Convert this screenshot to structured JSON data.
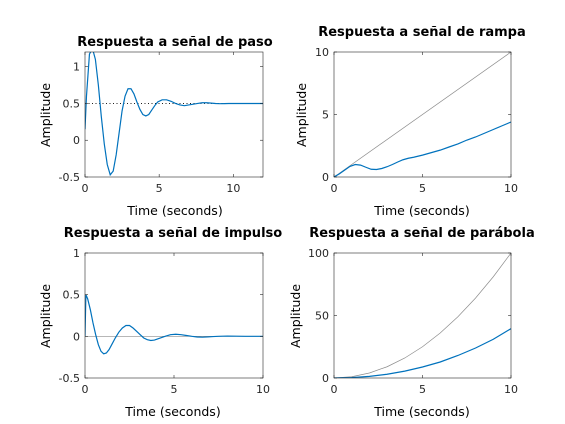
{
  "chart_data": [
    {
      "type": "line",
      "title": "Respuesta a señal de paso",
      "xlabel": "Time (seconds)",
      "ylabel": "Amplitude",
      "xlim": [
        0,
        12
      ],
      "ylim": [
        -0.5,
        1.2
      ],
      "xticks": [
        0,
        5,
        10
      ],
      "yticks": [
        -0.5,
        0,
        0.5,
        1
      ],
      "xticklabels": [
        "0",
        "5",
        "10"
      ],
      "yticklabels": [
        "-0.5",
        "0",
        "0.5",
        "1"
      ],
      "reference": {
        "kind": "hline",
        "y": 0.5,
        "style": "dotted"
      },
      "series": [
        {
          "color": "#0072bd",
          "x": [
            0,
            0.1,
            0.3,
            0.5,
            0.7,
            0.9,
            1.1,
            1.3,
            1.5,
            1.7,
            1.9,
            2.1,
            2.3,
            2.5,
            2.7,
            2.9,
            3.1,
            3.3,
            3.5,
            3.7,
            3.9,
            4.1,
            4.3,
            4.5,
            4.7,
            4.9,
            5.2,
            5.5,
            5.8,
            6.1,
            6.4,
            6.7,
            7.0,
            7.3,
            7.6,
            7.9,
            8.2,
            8.5,
            8.8,
            9.1,
            9.4,
            9.7,
            10.0,
            10.5,
            11.0,
            11.5,
            12.0
          ],
          "y": [
            0.15,
            0.6,
            1.17,
            1.25,
            1.1,
            0.75,
            0.32,
            -0.05,
            -0.33,
            -0.47,
            -0.42,
            -0.2,
            0.1,
            0.4,
            0.6,
            0.7,
            0.7,
            0.63,
            0.52,
            0.42,
            0.35,
            0.33,
            0.35,
            0.41,
            0.47,
            0.52,
            0.55,
            0.55,
            0.53,
            0.5,
            0.48,
            0.47,
            0.48,
            0.49,
            0.5,
            0.51,
            0.51,
            0.505,
            0.5,
            0.497,
            0.498,
            0.5,
            0.5,
            0.5,
            0.5,
            0.5,
            0.5
          ]
        }
      ]
    },
    {
      "type": "line",
      "title": "Respuesta a señal de rampa",
      "xlabel": "Time (seconds)",
      "ylabel": "Amplitude",
      "xlim": [
        0,
        10
      ],
      "ylim": [
        0,
        10
      ],
      "xticks": [
        0,
        5,
        10
      ],
      "yticks": [
        0,
        5,
        10
      ],
      "xticklabels": [
        "0",
        "5",
        "10"
      ],
      "yticklabels": [
        "0",
        "5",
        "10"
      ],
      "reference": {
        "kind": "line",
        "x": [
          0,
          10
        ],
        "y": [
          0,
          10
        ]
      },
      "series": [
        {
          "color": "#0072bd",
          "x": [
            0,
            0.3,
            0.6,
            0.9,
            1.2,
            1.5,
            1.8,
            2.1,
            2.4,
            2.7,
            3.0,
            3.3,
            3.6,
            3.9,
            4.2,
            4.5,
            5,
            5.5,
            6,
            6.5,
            7,
            7.5,
            8,
            8.5,
            9,
            9.5,
            10
          ],
          "y": [
            0,
            0.25,
            0.55,
            0.85,
            1.0,
            0.95,
            0.78,
            0.62,
            0.6,
            0.68,
            0.82,
            1.0,
            1.2,
            1.38,
            1.5,
            1.58,
            1.75,
            1.95,
            2.15,
            2.4,
            2.65,
            2.95,
            3.2,
            3.5,
            3.8,
            4.1,
            4.4
          ]
        }
      ]
    },
    {
      "type": "line",
      "title": "Respuesta a señal de impulso",
      "xlabel": "Time (seconds)",
      "ylabel": "Amplitude",
      "xlim": [
        0,
        10
      ],
      "ylim": [
        -0.5,
        1
      ],
      "xticks": [
        0,
        5,
        10
      ],
      "yticks": [
        -0.5,
        0,
        0.5,
        1
      ],
      "xticklabels": [
        "0",
        "5",
        "10"
      ],
      "yticklabels": [
        "-0.5",
        "0",
        "0.5",
        "1"
      ],
      "reference": {
        "kind": "hline",
        "y": 0,
        "style": "solid"
      },
      "series": [
        {
          "color": "#0072bd",
          "x": [
            0,
            0.05,
            0.15,
            0.3,
            0.45,
            0.6,
            0.75,
            0.9,
            1.05,
            1.2,
            1.35,
            1.5,
            1.7,
            1.9,
            2.1,
            2.3,
            2.5,
            2.7,
            2.9,
            3.1,
            3.3,
            3.5,
            3.7,
            3.9,
            4.1,
            4.3,
            4.5,
            4.8,
            5.1,
            5.4,
            5.7,
            6.0,
            6.3,
            6.6,
            6.9,
            7.2,
            7.5,
            8.0,
            8.5,
            9.0,
            9.5,
            10.0
          ],
          "y": [
            0.0,
            0.5,
            0.45,
            0.32,
            0.16,
            0.02,
            -0.1,
            -0.18,
            -0.21,
            -0.2,
            -0.16,
            -0.1,
            -0.02,
            0.05,
            0.1,
            0.13,
            0.13,
            0.1,
            0.06,
            0.02,
            -0.02,
            -0.04,
            -0.05,
            -0.045,
            -0.03,
            -0.015,
            0.0,
            0.02,
            0.025,
            0.02,
            0.01,
            0.0,
            -0.008,
            -0.01,
            -0.007,
            -0.003,
            0.0,
            0.003,
            0.002,
            0.0,
            0.0,
            0.0
          ]
        }
      ]
    },
    {
      "type": "line",
      "title": "Respuesta a señal de parábola",
      "xlabel": "Time (seconds)",
      "ylabel": "Amplitude",
      "xlim": [
        0,
        10
      ],
      "ylim": [
        0,
        100
      ],
      "xticks": [
        0,
        5,
        10
      ],
      "yticks": [
        0,
        50,
        100
      ],
      "xticklabels": [
        "0",
        "5",
        "10"
      ],
      "yticklabels": [
        "0",
        "50",
        "100"
      ],
      "reference": {
        "kind": "parabola",
        "x": [
          0,
          1,
          2,
          3,
          4,
          5,
          6,
          7,
          8,
          9,
          10
        ],
        "y": [
          0,
          1,
          4,
          9,
          16,
          25,
          36,
          49,
          64,
          81,
          100
        ]
      },
      "series": [
        {
          "color": "#0072bd",
          "x": [
            0,
            1,
            2,
            3,
            4,
            5,
            6,
            7,
            8,
            9,
            10
          ],
          "y": [
            0,
            0.3,
            1.3,
            3.0,
            5.5,
            8.8,
            12.8,
            18.0,
            24.0,
            31.0,
            39.5
          ]
        }
      ]
    }
  ]
}
